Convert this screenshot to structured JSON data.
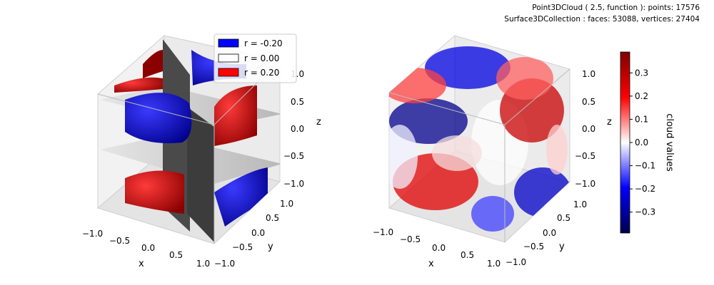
{
  "header": {
    "line1": "Point3DCloud ( 2.5, function ):  points: 17576",
    "line2": "Surface3DCollection :  faces: 53088,  vertices: 27404"
  },
  "colors": {
    "negative": "#0000ff",
    "zero": "#ffffff",
    "positive": "#ff0000",
    "pane": "#f2f2f2",
    "grid": "#d0d0d0"
  },
  "chart_data": [
    {
      "type": "surface3d",
      "xlabel": "x",
      "ylabel": "y",
      "zlabel": "z",
      "xlim": [
        -1.0,
        1.0
      ],
      "ylim": [
        -1.0,
        1.0
      ],
      "zlim": [
        -1.0,
        1.0
      ],
      "xticks": [
        "−1.0",
        "−0.5",
        "0.0",
        "0.5",
        "1.0"
      ],
      "yticks": [
        "−1.0",
        "−0.5",
        "0.0",
        "0.5",
        "1.0"
      ],
      "zticks": [
        "−1.0",
        "−0.5",
        "0.0",
        "0.5",
        "1.0"
      ],
      "grid": true,
      "legend_position": "upper-center",
      "legend": [
        {
          "label": "r = -0.20",
          "color": "#0000ff"
        },
        {
          "label": "r = 0.00",
          "color": "#ffffff"
        },
        {
          "label": "r = 0.20",
          "color": "#ff0000"
        }
      ]
    },
    {
      "type": "scatter3d",
      "xlabel": "x",
      "ylabel": "y",
      "zlabel": "z",
      "xlim": [
        -1.0,
        1.0
      ],
      "ylim": [
        -1.0,
        1.0
      ],
      "zlim": [
        -1.0,
        1.0
      ],
      "xticks": [
        "−1.0",
        "−0.5",
        "0.0",
        "0.5",
        "1.0"
      ],
      "yticks": [
        "−1.0",
        "−0.5",
        "0.0",
        "0.5",
        "1.0"
      ],
      "zticks": [
        "−1.0",
        "−0.5",
        "0.0",
        "0.5",
        "1.0"
      ],
      "grid": true,
      "colormap": "seismic",
      "colorbar": {
        "label": "cloud values",
        "range": [
          -0.39,
          0.39
        ],
        "ticks": [
          -0.3,
          -0.2,
          -0.1,
          0.0,
          0.1,
          0.2,
          0.3
        ],
        "tick_labels": [
          "−0.3",
          "−0.2",
          "−0.1",
          "0.0",
          "0.1",
          "0.2",
          "0.3"
        ]
      }
    }
  ]
}
